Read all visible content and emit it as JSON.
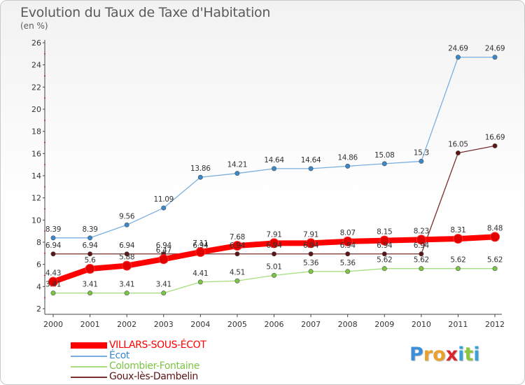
{
  "header": {
    "title": "Evolution du Taux de Taxe d'Habitation",
    "subtitle": "(en %)"
  },
  "logo": {
    "text": "Proxiti",
    "letters": [
      {
        "ch": "P",
        "color": "#3b8ed8"
      },
      {
        "ch": "r",
        "color": "#e9a12b"
      },
      {
        "ch": "o",
        "color": "#e9a12b"
      },
      {
        "ch": "x",
        "color": "#d9252b"
      },
      {
        "ch": "i",
        "color": "#3aa0d8"
      },
      {
        "ch": "t",
        "color": "#8cc63e"
      },
      {
        "ch": "i",
        "color": "#3aa0d8"
      }
    ]
  },
  "chart_data": {
    "type": "line",
    "title": "Evolution du Taux de Taxe d'Habitation",
    "subtitle": "(en %)",
    "xlabel": "",
    "ylabel": "",
    "x": [
      "2000",
      "2001",
      "2002",
      "2003",
      "2004",
      "2005",
      "2006",
      "2007",
      "2008",
      "2009",
      "2010",
      "2011",
      "2012"
    ],
    "ylim": [
      2,
      26
    ],
    "yticks": [
      2,
      4,
      6,
      8,
      10,
      12,
      14,
      16,
      18,
      20,
      22,
      24,
      26
    ],
    "grid": false,
    "legend_position": "bottom-left",
    "series": [
      {
        "name": "VILLARS-SOUS-ÉCOT",
        "color": "#ff0000",
        "marker_color": "#e00000",
        "values": [
          4.43,
          5.6,
          5.88,
          6.47,
          7.11,
          7.68,
          7.91,
          7.91,
          8.07,
          8.15,
          8.23,
          8.31,
          8.48
        ],
        "labels": [
          "4.43",
          "5.6",
          "5.88",
          "6.47",
          "7.11",
          "7.68",
          "7.91",
          "7.91",
          "8.07",
          "8.15",
          "8.23",
          "8.31",
          "8.48"
        ]
      },
      {
        "name": "Écot",
        "color": "#7aaee0",
        "marker_color": "#3a88cc",
        "values": [
          8.39,
          8.39,
          9.56,
          11.09,
          13.86,
          14.21,
          14.64,
          14.64,
          14.86,
          15.08,
          15.3,
          24.69,
          24.69
        ],
        "labels": [
          "8.39",
          "8.39",
          "9.56",
          "11.09",
          "13.86",
          "14.21",
          "14.64",
          "14.64",
          "14.86",
          "15.08",
          "15.3",
          "24.69",
          "24.69"
        ]
      },
      {
        "name": "Colombier-Fontaine",
        "color": "#a7df80",
        "marker_color": "#7cc444",
        "values": [
          3.41,
          3.41,
          3.41,
          3.41,
          4.41,
          4.51,
          5.01,
          5.36,
          5.36,
          5.62,
          5.62,
          5.62,
          5.62
        ],
        "labels": [
          "3.41",
          "3.41",
          "3.41",
          "3.41",
          "4.41",
          "4.51",
          "5.01",
          "5.36",
          "5.36",
          "5.62",
          "5.62",
          "5.62",
          "5.62"
        ]
      },
      {
        "name": "Goux-lès-Dambelin",
        "color": "#7a2e2e",
        "marker_color": "#5c1414",
        "values": [
          6.94,
          6.94,
          6.94,
          6.94,
          6.94,
          6.94,
          6.94,
          6.94,
          6.94,
          6.94,
          6.94,
          16.05,
          16.69
        ],
        "labels": [
          "6.94",
          "6.94",
          "6.94",
          "6.94",
          "6.94",
          "6.94",
          "6.94",
          "6.94",
          "6.94",
          "6.94",
          "6.94",
          "16.05",
          "16.69"
        ]
      }
    ]
  }
}
